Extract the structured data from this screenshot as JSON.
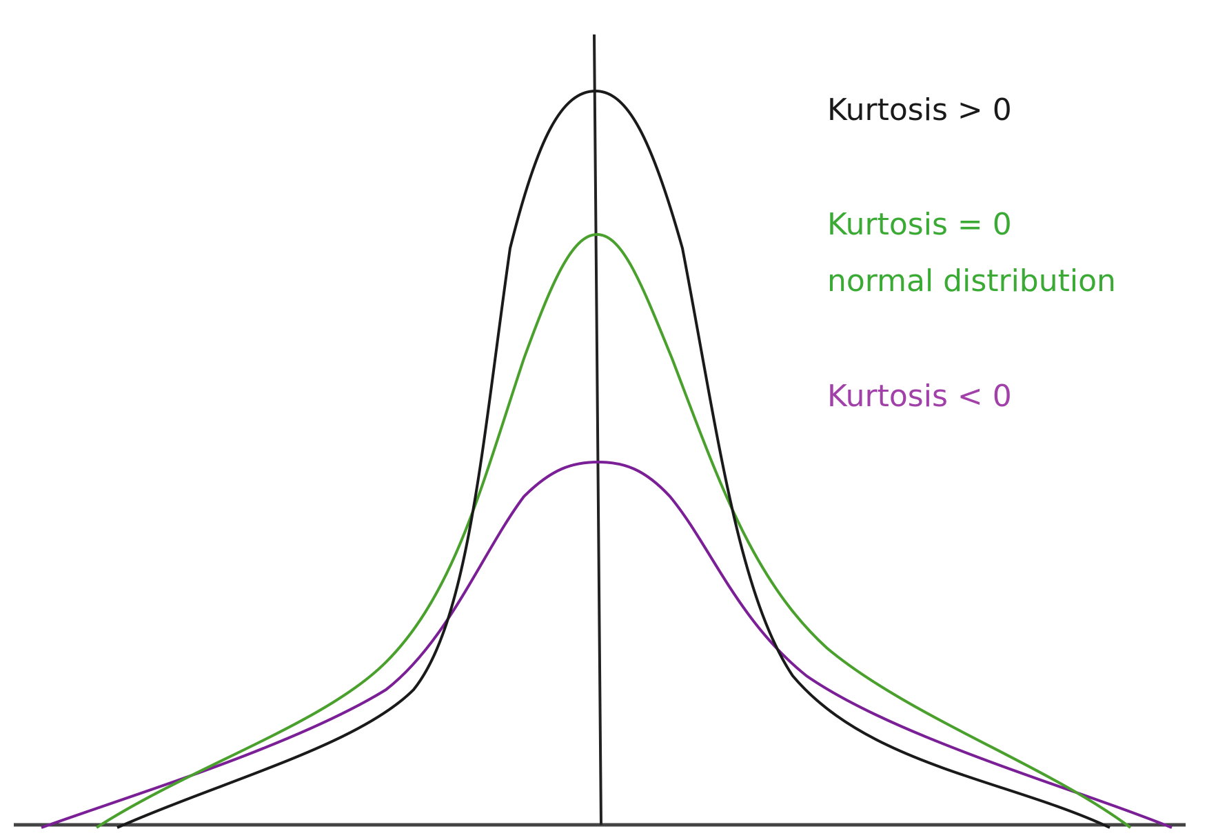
{
  "labels": {
    "kurtosis_positive": "Kurtosis > 0",
    "kurtosis_zero": "Kurtosis = 0",
    "normal_distribution": "normal distribution",
    "kurtosis_negative": "Kurtosis < 0"
  },
  "colors": {
    "kurtosis_positive": "#1a1a1a",
    "kurtosis_zero": "#3aaa35",
    "kurtosis_zero_curve": "#4aa02c",
    "kurtosis_negative": "#a040a8",
    "kurtosis_negative_curve": "#7a1f96",
    "axis": "#444444"
  }
}
